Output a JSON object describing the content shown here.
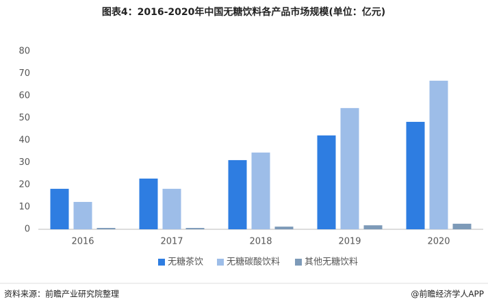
{
  "chart_data": {
    "type": "bar",
    "title": "图表4：2016-2020年中国无糖饮料各产品市场规模(单位：亿元)",
    "categories": [
      "2016",
      "2017",
      "2018",
      "2019",
      "2020"
    ],
    "series": [
      {
        "name": "无糖茶饮",
        "color": "#2e7de1",
        "values": [
          18.2,
          22.8,
          31.1,
          42.2,
          48.3
        ]
      },
      {
        "name": "无糖碳酸饮料",
        "color": "#9dbde8",
        "values": [
          12.3,
          18.2,
          34.5,
          54.5,
          66.8
        ]
      },
      {
        "name": "其他无糖饮料",
        "color": "#7d9ab8",
        "values": [
          0.6,
          0.6,
          1.2,
          1.8,
          2.5
        ]
      }
    ],
    "ylim": [
      0,
      80
    ],
    "yticks": [
      0,
      10,
      20,
      30,
      40,
      50,
      60,
      70,
      80
    ],
    "grid": false,
    "legend": "bottom"
  },
  "footer": {
    "source": "资料来源：前瞻产业研究院整理",
    "credit": "@前瞻经济学人APP"
  }
}
